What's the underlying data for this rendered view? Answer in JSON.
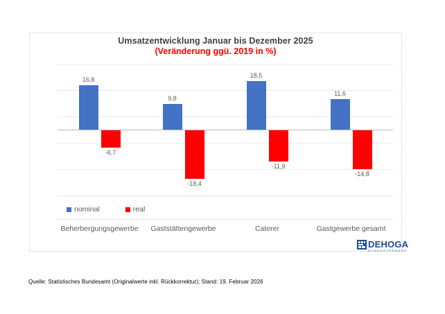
{
  "chart_data": {
    "type": "bar",
    "title": "Umsatzentwicklung Januar bis Dezember 2025",
    "subtitle": "(Veränderung ggü. 2019 in %)",
    "categories": [
      "Beherbergungsgewerbe",
      "Gaststättengewerbe",
      "Caterer",
      "Gastgewerbe gesamt"
    ],
    "series": [
      {
        "name": "nominal",
        "color": "#4472C4",
        "values": [
          16.8,
          9.8,
          18.5,
          11.6
        ]
      },
      {
        "name": "real",
        "color": "#FF0000",
        "values": [
          -6.7,
          -18.4,
          -11.9,
          -14.8
        ]
      }
    ],
    "ylim": [
      -25,
      25
    ],
    "gridline_values": [
      25,
      15,
      5,
      -5,
      -15,
      -25
    ],
    "grid": true,
    "legend_position": "bottom-left",
    "xlabel": "",
    "ylabel": ""
  },
  "logo": {
    "text": "DEHOGA",
    "subtext": "BUNDESVERBAND"
  },
  "footer": {
    "source": "Quelle: Statistisches Bundesamt (Originalwerte inkl. Rückkorrektur); Stand: 19. Februar 2026"
  },
  "colors": {
    "nominal_bar": "#4472C4",
    "real_bar": "#FF0000",
    "subtitle_red": "#FF0000",
    "title_gray": "#404040",
    "label_gray": "#595959",
    "logo_blue": "#1A4899"
  }
}
